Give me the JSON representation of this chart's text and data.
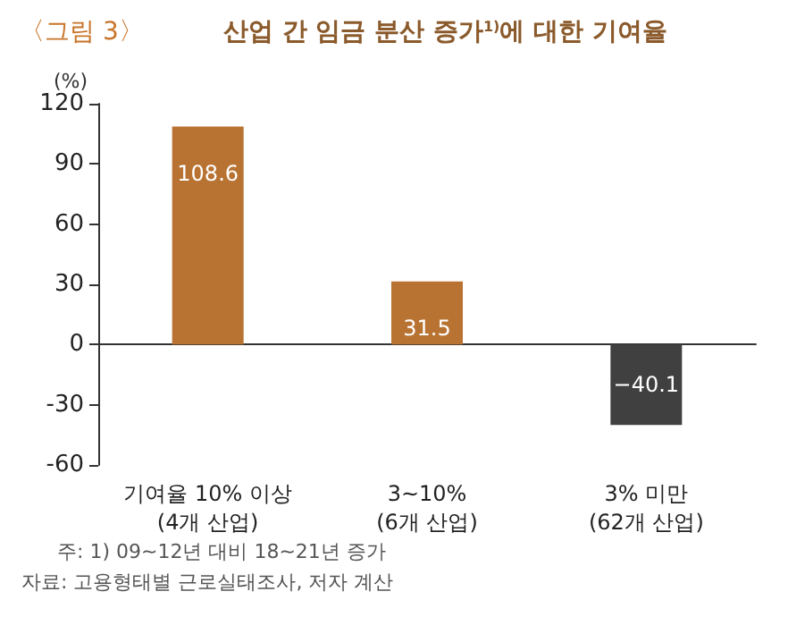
{
  "chart_data": {
    "type": "bar",
    "subtitle": "〈그림 3〉",
    "title": "산업 간 임금 분산 증가$^{1)}$에 대한 기여율",
    "ylabel": "(%)",
    "categories": [
      "기여율 10% 이상\n(4개 산업)",
      "3~10%\n(6개 산업)",
      "3% 미만\n(62개 산업)"
    ],
    "values": [
      108.6,
      31.5,
      -40.1
    ],
    "colors": [
      "#b87333",
      "#b87333",
      "#404040"
    ],
    "ylim": [
      -60,
      120
    ],
    "yticks": [
      -60,
      -30,
      0,
      30,
      60,
      90,
      120
    ],
    "data_labels": true,
    "annotations": [
      "주: 1) 09~12년 대비 18~21년 증가",
      "자료: 고용형태별 근로실태조사, 저자 계산"
    ]
  }
}
